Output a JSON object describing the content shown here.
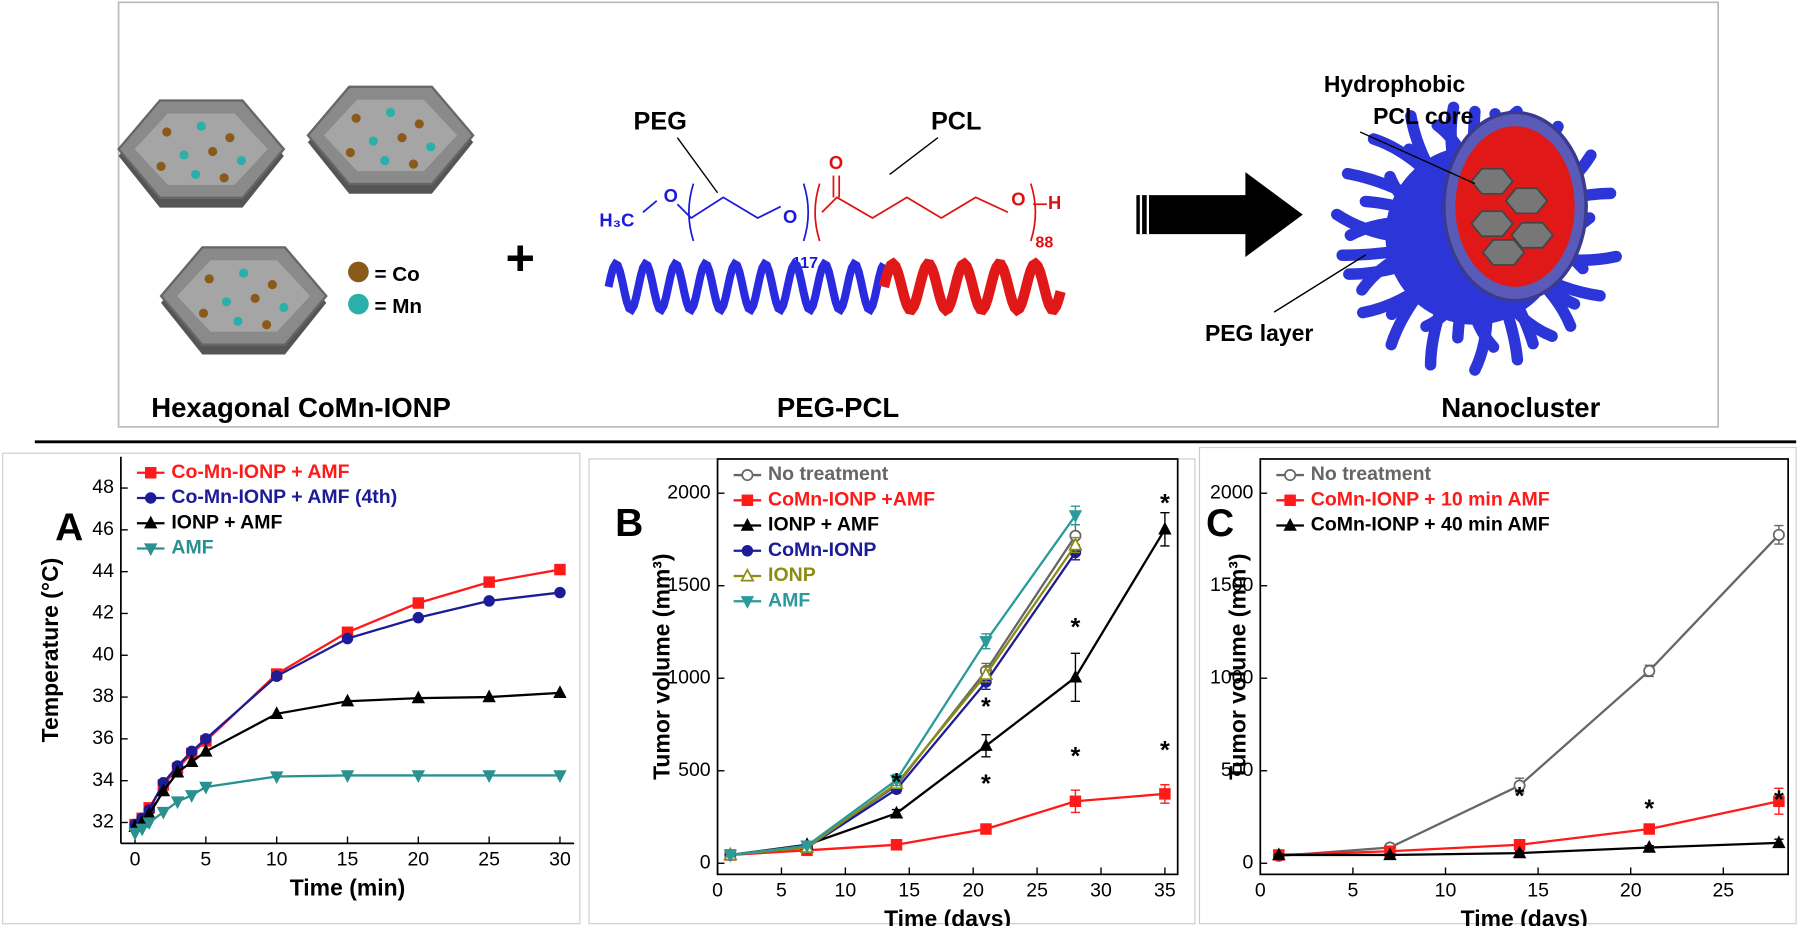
{
  "schematic": {
    "left_label": "Hexagonal CoMn-IONP",
    "co_label": "= Co",
    "mn_label": "= Mn",
    "plus": "+",
    "peg": "PEG",
    "pcl": "PCL",
    "formula": {
      "methyl": "H₃C",
      "o1": "O",
      "o2": "O",
      "peg_n": "117",
      "carbonyl": "O",
      "o3": "O",
      "pcl_n": "88",
      "end": "H"
    },
    "middle_label": "PEG-PCL",
    "core_label_1": "Hydrophobic",
    "core_label_2": "PCL core",
    "layer_label": "PEG layer",
    "right_label": "Nanocluster"
  },
  "chart_data": [
    {
      "type": "line",
      "label": "A",
      "xlabel": "Time (min)",
      "ylabel": "Temperature (°C)",
      "x": [
        0,
        0.5,
        1,
        2,
        3,
        4,
        5,
        10,
        15,
        20,
        25,
        30
      ],
      "xlim": [
        -1,
        31
      ],
      "xticks": [
        0,
        5,
        10,
        15,
        20,
        25,
        30
      ],
      "ylim": [
        31,
        49.5
      ],
      "yticks": [
        32,
        34,
        36,
        38,
        40,
        42,
        44,
        46,
        48
      ],
      "legend": "upper left",
      "series": [
        {
          "name": "Co-Mn-IONP + AMF",
          "color": "#ff1a1a",
          "marker": "square",
          "values": [
            31.9,
            32.2,
            32.7,
            33.8,
            34.6,
            35.3,
            35.9,
            39.1,
            41.1,
            42.5,
            43.5,
            44.1
          ]
        },
        {
          "name": "Co-Mn-IONP + AMF (4th)",
          "color": "#1c1c96",
          "marker": "circle",
          "values": [
            31.9,
            32.2,
            32.6,
            33.9,
            34.7,
            35.4,
            36.0,
            39.0,
            40.8,
            41.8,
            42.6,
            43.0
          ]
        },
        {
          "name": "IONP + AMF",
          "color": "#000000",
          "marker": "triangle",
          "values": [
            31.8,
            32.0,
            32.4,
            33.5,
            34.4,
            34.9,
            35.4,
            37.2,
            37.8,
            37.95,
            38.0,
            38.2
          ]
        },
        {
          "name": "AMF",
          "color": "#2a9090",
          "marker": "triangle-down",
          "values": [
            31.5,
            31.7,
            32.0,
            32.5,
            33.0,
            33.3,
            33.7,
            34.2,
            34.25,
            34.25,
            34.25,
            34.25
          ]
        }
      ]
    },
    {
      "type": "line",
      "label": "B",
      "xlabel": "Time (days)",
      "ylabel": "Tumor volume (mm³)",
      "x": [
        1,
        7,
        14,
        21,
        28,
        35
      ],
      "xlim": [
        0,
        36
      ],
      "xticks": [
        0,
        5,
        10,
        15,
        20,
        25,
        30,
        35
      ],
      "ylim": [
        -60,
        2185
      ],
      "yticks": [
        0,
        500,
        1000,
        1500,
        2000
      ],
      "legend": "upper left",
      "series": [
        {
          "name": "No treatment",
          "color": "#666666",
          "marker": "open-circle",
          "values": [
            45,
            90,
            420,
            1040,
            1770,
            null
          ],
          "errors": [
            10,
            10,
            30,
            40,
            60,
            null
          ]
        },
        {
          "name": "CoMn-IONP +AMF",
          "color": "#ff1a1a",
          "marker": "square",
          "values": [
            45,
            70,
            100,
            185,
            335,
            375
          ],
          "errors": [
            10,
            10,
            10,
            20,
            60,
            50
          ]
        },
        {
          "name": "IONP + AMF",
          "color": "#000000",
          "marker": "triangle",
          "values": [
            45,
            100,
            270,
            635,
            1005,
            1805
          ],
          "errors": [
            10,
            15,
            20,
            60,
            130,
            90
          ]
        },
        {
          "name": "CoMn-IONP",
          "color": "#1c1c96",
          "marker": "circle",
          "values": [
            45,
            85,
            400,
            980,
            1680,
            null
          ],
          "errors": [
            10,
            10,
            20,
            40,
            40,
            null
          ]
        },
        {
          "name": "IONP",
          "color": "#8c8c14",
          "marker": "open-triangle",
          "values": [
            45,
            85,
            430,
            1020,
            1720,
            null
          ],
          "errors": [
            10,
            10,
            20,
            40,
            40,
            null
          ]
        },
        {
          "name": "AMF",
          "color": "#2a9a9a",
          "marker": "triangle-down",
          "values": [
            45,
            95,
            450,
            1200,
            1880,
            null
          ],
          "errors": [
            10,
            10,
            30,
            40,
            50,
            null
          ]
        }
      ],
      "annotations": [
        {
          "text": "*",
          "x": 14,
          "y": 429
        },
        {
          "text": "*",
          "x": 21,
          "y": 422
        },
        {
          "text": "*",
          "x": 21,
          "y": 838
        },
        {
          "text": "*",
          "x": 28,
          "y": 571
        },
        {
          "text": "*",
          "x": 28,
          "y": 1267
        },
        {
          "text": "*",
          "x": 35,
          "y": 602
        },
        {
          "text": "*",
          "x": 35,
          "y": 1938
        }
      ]
    },
    {
      "type": "line",
      "label": "C",
      "xlabel": "Time (days)",
      "ylabel": "Tumor volume (mm³)",
      "x": [
        1,
        7,
        14,
        21,
        28
      ],
      "xlim": [
        0,
        28.5
      ],
      "xticks": [
        0,
        5,
        10,
        15,
        20,
        25
      ],
      "ylim": [
        -60,
        2185
      ],
      "yticks": [
        0,
        500,
        1000,
        1500,
        2000
      ],
      "legend": "upper left",
      "series": [
        {
          "name": "No treatment",
          "color": "#666666",
          "marker": "open-circle",
          "values": [
            40,
            85,
            420,
            1040,
            1775
          ],
          "errors": [
            10,
            15,
            40,
            30,
            50
          ]
        },
        {
          "name": "CoMn-IONP + 10 min AMF",
          "color": "#ff1a1a",
          "marker": "square",
          "values": [
            45,
            65,
            100,
            185,
            335
          ],
          "errors": [
            10,
            10,
            10,
            15,
            70
          ]
        },
        {
          "name": "CoMn-IONP + 40 min AMF",
          "color": "#000000",
          "marker": "triangle",
          "values": [
            45,
            45,
            55,
            85,
            110
          ],
          "errors": [
            5,
            5,
            10,
            10,
            20
          ]
        }
      ],
      "annotations": [
        {
          "text": "*",
          "x": 14,
          "y": 354
        },
        {
          "text": "*",
          "x": 21,
          "y": 286
        },
        {
          "text": "*",
          "x": 28,
          "y": 335
        }
      ]
    }
  ]
}
